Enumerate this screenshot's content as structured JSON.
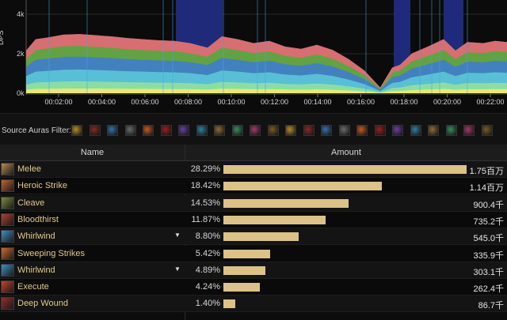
{
  "chart_data": {
    "type": "area",
    "ylabel": "DPS",
    "y_ticks": [
      "4k",
      "2k",
      "0k"
    ],
    "x_ticks": [
      "00:02:00",
      "00:04:00",
      "00:06:00",
      "00:08:00",
      "00:10:00",
      "00:12:00",
      "00:14:00",
      "00:16:00",
      "00:18:00",
      "00:20:00",
      "00:22:00"
    ],
    "ylim": [
      0,
      4000
    ],
    "series_colors": [
      "#f2e774",
      "#8fe0a0",
      "#5bc4d8",
      "#3f7ec9",
      "#59a63f",
      "#de6b6b",
      "#8f97c6"
    ]
  },
  "auras": {
    "label": "Source Auras Filter:",
    "icons": [
      "crest-icon",
      "demon-icon",
      "frost-icon",
      "shield-icon",
      "fire-icon",
      "blood-icon",
      "rune-icon",
      "magic-icon",
      "sword-icon",
      "eye-icon",
      "axe-icon",
      "claw-icon",
      "bolt-icon",
      "flame-icon",
      "gear-icon",
      "nature-icon",
      "light-icon",
      "mask-icon",
      "spark-icon",
      "star-icon",
      "potion-icon",
      "orb-icon",
      "void-icon",
      "dark-icon"
    ]
  },
  "table": {
    "headers": {
      "name": "Name",
      "amount": "Amount"
    },
    "rows": [
      {
        "name": "Melee",
        "pct": "28.29%",
        "fraction": 1.0,
        "amount": "1.75百万",
        "icon": "melee-icon",
        "color": "#b98a55",
        "expand": ""
      },
      {
        "name": "Heroic Strike",
        "pct": "18.42%",
        "fraction": 0.651,
        "amount": "1.14百万",
        "icon": "heroic-strike-icon",
        "color": "#c5622f",
        "expand": ""
      },
      {
        "name": "Cleave",
        "pct": "14.53%",
        "fraction": 0.514,
        "amount": "900.4千",
        "icon": "cleave-icon",
        "color": "#7f8a3a",
        "expand": ""
      },
      {
        "name": "Bloodthirst",
        "pct": "11.87%",
        "fraction": 0.42,
        "amount": "735.2千",
        "icon": "bloodthirst-icon",
        "color": "#b2402d",
        "expand": ""
      },
      {
        "name": "Whirlwind",
        "pct": "8.80%",
        "fraction": 0.311,
        "amount": "545.0千",
        "icon": "whirlwind-icon",
        "color": "#3f8fc5",
        "expand": "▼"
      },
      {
        "name": "Sweeping Strikes",
        "pct": "5.42%",
        "fraction": 0.192,
        "amount": "335.9千",
        "icon": "sweeping-strikes-icon",
        "color": "#d06a2a",
        "expand": ""
      },
      {
        "name": "Whirlwind",
        "pct": "4.89%",
        "fraction": 0.173,
        "amount": "303.1千",
        "icon": "whirlwind-icon",
        "color": "#3f8fc5",
        "expand": "▼"
      },
      {
        "name": "Execute",
        "pct": "4.24%",
        "fraction": 0.15,
        "amount": "262.4千",
        "icon": "execute-icon",
        "color": "#c8402b",
        "expand": ""
      },
      {
        "name": "Deep Wound",
        "pct": "1.40%",
        "fraction": 0.05,
        "amount": "86.7千",
        "icon": "deep-wound-icon",
        "color": "#9e2a2a",
        "expand": ""
      }
    ]
  }
}
